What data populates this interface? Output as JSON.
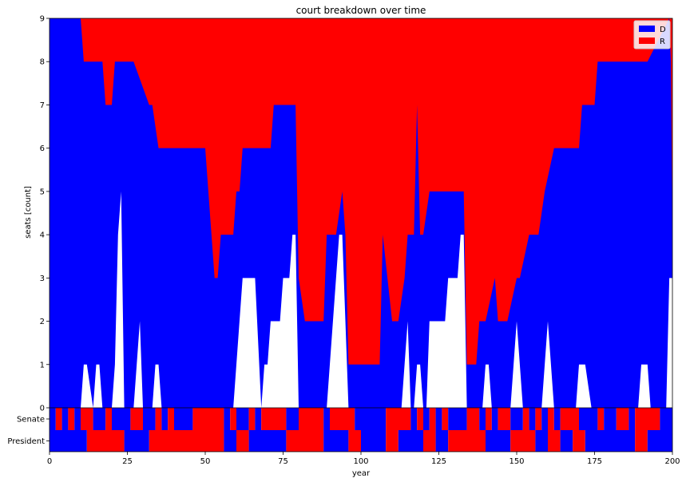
{
  "chart_data": {
    "type": "area",
    "title": "court breakdown over time",
    "xlabel": "year",
    "ylabel": "seats [count]",
    "xlim": [
      0,
      200
    ],
    "ylim": [
      0,
      9
    ],
    "xticks": [
      "0",
      "25",
      "50",
      "75",
      "100",
      "125",
      "150",
      "175",
      "200"
    ],
    "yticks": [
      "0",
      "1",
      "2",
      "3",
      "4",
      "5",
      "6",
      "7",
      "8",
      "9"
    ],
    "legend": {
      "placement": "top-right"
    },
    "colors": {
      "D": "#0000ff",
      "R": "#ff0000",
      "vacant": "#ffffff"
    },
    "series": [
      {
        "name": "D",
        "x": [
          0,
          10,
          11,
          14,
          17,
          18,
          20,
          21,
          22,
          24,
          27,
          32,
          33,
          35,
          36,
          50,
          51,
          53,
          54,
          55,
          56,
          59,
          60,
          61,
          62,
          66,
          71,
          72,
          79,
          80,
          82,
          88,
          89,
          92,
          94,
          95,
          96,
          97,
          98,
          106,
          107,
          110,
          112,
          114,
          115,
          117,
          118,
          119,
          120,
          122,
          123,
          128,
          131,
          133,
          134,
          137,
          138,
          140,
          143,
          144,
          147,
          150,
          151,
          154,
          157,
          159,
          162,
          163,
          170,
          171,
          173,
          175,
          176,
          178,
          184,
          192,
          199,
          199.5,
          200
        ],
        "values": [
          9,
          9,
          8,
          8,
          8,
          7,
          7,
          8,
          8,
          8,
          8,
          7,
          7,
          6,
          6,
          6,
          5,
          3,
          3,
          4,
          4,
          4,
          5,
          5,
          6,
          6,
          6,
          7,
          7,
          3,
          2,
          2,
          4,
          4,
          5,
          4,
          1,
          1,
          1,
          1,
          4,
          2,
          2,
          3,
          4,
          4,
          7,
          4,
          4,
          5,
          5,
          5,
          5,
          5,
          1,
          1,
          2,
          2,
          3,
          2,
          2,
          3,
          3,
          4,
          4,
          5,
          6,
          6,
          6,
          7,
          7,
          7,
          8,
          8,
          8,
          8,
          9,
          8,
          4
        ]
      },
      {
        "name": "R",
        "note_ref": "stacked above D up to 9 seats"
      }
    ],
    "vacancy": {
      "x": [
        0,
        10,
        11,
        12,
        14,
        15,
        16,
        17,
        20,
        21,
        22,
        23,
        24,
        27,
        28,
        29,
        30,
        33,
        34,
        35,
        36,
        59,
        61,
        62,
        64,
        66,
        68,
        69,
        70,
        71,
        72,
        74,
        75,
        76,
        77,
        78,
        79,
        80,
        89,
        90,
        92,
        93,
        94,
        96,
        113,
        114,
        115,
        116,
        117,
        118,
        119,
        120,
        121,
        122,
        123,
        124,
        127,
        128,
        130,
        131,
        132,
        133,
        134,
        139,
        140,
        141,
        142,
        148,
        149,
        150,
        151,
        152,
        158,
        159,
        160,
        162,
        169,
        170,
        172,
        174,
        189,
        190,
        192,
        193,
        198,
        199,
        200
      ],
      "values": [
        0,
        0,
        1,
        1,
        0,
        1,
        1,
        0,
        0,
        1,
        4,
        5,
        0,
        0,
        1,
        2,
        0,
        0,
        1,
        1,
        0,
        0,
        2,
        3,
        3,
        3,
        0,
        1,
        1,
        2,
        2,
        2,
        3,
        3,
        3,
        4,
        4,
        0,
        0,
        1,
        3,
        4,
        4,
        0,
        0,
        1,
        2,
        0,
        0,
        1,
        1,
        0,
        0,
        2,
        2,
        2,
        2,
        3,
        3,
        3,
        4,
        4,
        0,
        0,
        1,
        1,
        0,
        0,
        1,
        2,
        1,
        0,
        0,
        1,
        2,
        0,
        0,
        1,
        1,
        0,
        0,
        1,
        1,
        0,
        0,
        3,
        3
      ]
    },
    "senate": {
      "label": "Senate",
      "runs": [
        [
          0,
          2,
          "D"
        ],
        [
          2,
          4,
          "R"
        ],
        [
          4,
          6,
          "D"
        ],
        [
          6,
          8,
          "R"
        ],
        [
          8,
          10,
          "D"
        ],
        [
          10,
          14,
          "R"
        ],
        [
          14,
          18,
          "D"
        ],
        [
          18,
          20,
          "R"
        ],
        [
          20,
          26,
          "D"
        ],
        [
          26,
          30,
          "R"
        ],
        [
          30,
          34,
          "D"
        ],
        [
          34,
          36,
          "R"
        ],
        [
          36,
          38,
          "D"
        ],
        [
          38,
          40,
          "R"
        ],
        [
          40,
          46,
          "D"
        ],
        [
          46,
          56,
          "R"
        ],
        [
          56,
          58,
          "D"
        ],
        [
          58,
          60,
          "R"
        ],
        [
          60,
          64,
          "D"
        ],
        [
          64,
          66,
          "R"
        ],
        [
          66,
          68,
          "D"
        ],
        [
          68,
          76,
          "R"
        ],
        [
          76,
          80,
          "D"
        ],
        [
          80,
          88,
          "R"
        ],
        [
          88,
          90,
          "D"
        ],
        [
          90,
          98,
          "R"
        ],
        [
          98,
          108,
          "D"
        ],
        [
          108,
          116,
          "R"
        ],
        [
          116,
          118,
          "D"
        ],
        [
          118,
          120,
          "R"
        ],
        [
          120,
          122,
          "D"
        ],
        [
          122,
          124,
          "R"
        ],
        [
          124,
          126,
          "D"
        ],
        [
          126,
          128,
          "R"
        ],
        [
          128,
          134,
          "D"
        ],
        [
          134,
          138,
          "R"
        ],
        [
          138,
          140,
          "D"
        ],
        [
          140,
          142,
          "R"
        ],
        [
          142,
          144,
          "D"
        ],
        [
          144,
          148,
          "R"
        ],
        [
          148,
          152,
          "D"
        ],
        [
          152,
          154,
          "R"
        ],
        [
          154,
          156,
          "D"
        ],
        [
          156,
          158,
          "R"
        ],
        [
          158,
          160,
          "D"
        ],
        [
          160,
          162,
          "R"
        ],
        [
          162,
          164,
          "D"
        ],
        [
          164,
          170,
          "R"
        ],
        [
          170,
          176,
          "D"
        ],
        [
          176,
          178,
          "R"
        ],
        [
          178,
          182,
          "D"
        ],
        [
          182,
          186,
          "R"
        ],
        [
          186,
          188,
          "D"
        ],
        [
          188,
          196,
          "R"
        ],
        [
          196,
          200,
          "D"
        ]
      ]
    },
    "president": {
      "label": "President",
      "runs": [
        [
          0,
          12,
          "D"
        ],
        [
          12,
          24,
          "R"
        ],
        [
          24,
          32,
          "D"
        ],
        [
          32,
          56,
          "R"
        ],
        [
          56,
          60,
          "D"
        ],
        [
          60,
          64,
          "R"
        ],
        [
          64,
          76,
          "D"
        ],
        [
          76,
          88,
          "R"
        ],
        [
          88,
          96,
          "D"
        ],
        [
          96,
          100,
          "R"
        ],
        [
          100,
          108,
          "D"
        ],
        [
          108,
          112,
          "R"
        ],
        [
          112,
          120,
          "D"
        ],
        [
          120,
          124,
          "R"
        ],
        [
          124,
          128,
          "D"
        ],
        [
          128,
          140,
          "R"
        ],
        [
          140,
          148,
          "D"
        ],
        [
          148,
          156,
          "R"
        ],
        [
          156,
          160,
          "D"
        ],
        [
          160,
          164,
          "R"
        ],
        [
          164,
          168,
          "D"
        ],
        [
          168,
          172,
          "R"
        ],
        [
          172,
          188,
          "D"
        ],
        [
          188,
          192,
          "R"
        ],
        [
          192,
          200,
          "D"
        ]
      ]
    }
  }
}
